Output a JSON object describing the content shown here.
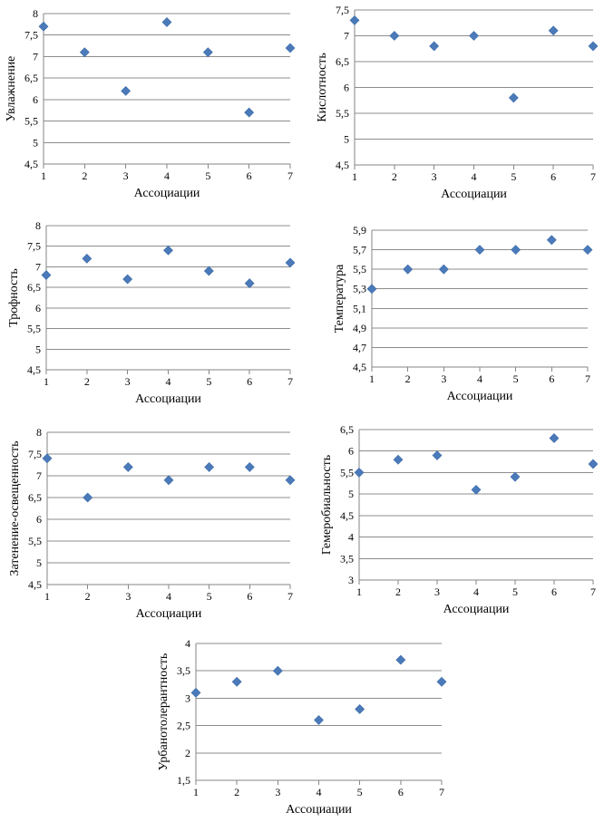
{
  "chart_data": [
    {
      "type": "scatter",
      "xlabel": "Ассоциации",
      "ylabel": "Увлажнение",
      "x": [
        1,
        2,
        3,
        4,
        5,
        6,
        7
      ],
      "y": [
        7.7,
        7.1,
        6.2,
        7.8,
        7.1,
        5.7,
        7.2
      ],
      "ylim": [
        4.5,
        8
      ],
      "yticks": [
        "4,5",
        "5",
        "5,5",
        "6",
        "6,5",
        "7",
        "7,5",
        "8"
      ],
      "xticks": [
        "1",
        "2",
        "3",
        "4",
        "5",
        "6",
        "7"
      ],
      "grid": "horizontal",
      "marker_color": "#4a7ab9"
    },
    {
      "type": "scatter",
      "xlabel": "Ассоциации",
      "ylabel": "Кислотность",
      "x": [
        1,
        2,
        3,
        4,
        5,
        6,
        7
      ],
      "y": [
        7.3,
        7.0,
        6.8,
        7.0,
        5.8,
        7.1,
        6.8
      ],
      "ylim": [
        4.5,
        7.5
      ],
      "yticks": [
        "4,5",
        "5",
        "5,5",
        "6",
        "6,5",
        "7",
        "7,5"
      ],
      "xticks": [
        "1",
        "2",
        "3",
        "4",
        "5",
        "6",
        "7"
      ],
      "grid": "horizontal",
      "marker_color": "#4a7ab9"
    },
    {
      "type": "scatter",
      "xlabel": "Ассоциации",
      "ylabel": "Трофность",
      "x": [
        1,
        2,
        3,
        4,
        5,
        6,
        7
      ],
      "y": [
        6.8,
        7.2,
        6.7,
        7.4,
        6.9,
        6.6,
        7.1
      ],
      "ylim": [
        4.5,
        8
      ],
      "yticks": [
        "4,5",
        "5",
        "5,5",
        "6",
        "6,5",
        "7",
        "7,5",
        "8"
      ],
      "xticks": [
        "1",
        "2",
        "3",
        "4",
        "5",
        "6",
        "7"
      ],
      "grid": "horizontal",
      "marker_color": "#4a7ab9"
    },
    {
      "type": "scatter",
      "xlabel": "Ассоциации",
      "ylabel": "Температура",
      "x": [
        1,
        2,
        3,
        4,
        5,
        6,
        7
      ],
      "y": [
        5.3,
        5.5,
        5.5,
        5.7,
        5.7,
        5.8,
        5.7
      ],
      "ylim": [
        4.5,
        5.9
      ],
      "yticks": [
        "4,5",
        "4,7",
        "4,9",
        "5,1",
        "5,3",
        "5,5",
        "5,7",
        "5,9"
      ],
      "xticks": [
        "1",
        "2",
        "3",
        "4",
        "5",
        "6",
        "7"
      ],
      "grid": "horizontal",
      "marker_color": "#4a7ab9"
    },
    {
      "type": "scatter",
      "xlabel": "Ассоциации",
      "ylabel": "Затенение-освещенность",
      "x": [
        1,
        2,
        3,
        4,
        5,
        6,
        7
      ],
      "y": [
        7.4,
        6.5,
        7.2,
        6.9,
        7.2,
        7.2,
        6.9
      ],
      "ylim": [
        4.5,
        8
      ],
      "yticks": [
        "4,5",
        "5",
        "5,5",
        "6",
        "6,5",
        "7",
        "7,5",
        "8"
      ],
      "xticks": [
        "1",
        "2",
        "3",
        "4",
        "5",
        "6",
        "7"
      ],
      "grid": "horizontal",
      "marker_color": "#4a7ab9"
    },
    {
      "type": "scatter",
      "xlabel": "Ассоциации",
      "ylabel": "Гемеробиальность",
      "x": [
        1,
        2,
        3,
        4,
        5,
        6,
        7
      ],
      "y": [
        5.5,
        5.8,
        5.9,
        5.1,
        5.4,
        6.3,
        5.7
      ],
      "ylim": [
        3,
        6.5
      ],
      "yticks": [
        "3",
        "3,5",
        "4",
        "4,5",
        "5",
        "5,5",
        "6",
        "6,5"
      ],
      "xticks": [
        "1",
        "2",
        "3",
        "4",
        "5",
        "6",
        "7"
      ],
      "grid": "horizontal",
      "marker_color": "#4a7ab9"
    },
    {
      "type": "scatter",
      "xlabel": "Ассоциации",
      "ylabel": "Урбанотолерантность",
      "x": [
        1,
        2,
        3,
        4,
        5,
        6,
        7
      ],
      "y": [
        3.1,
        3.3,
        3.5,
        2.6,
        2.8,
        3.7,
        3.3
      ],
      "ylim": [
        1.5,
        4
      ],
      "yticks": [
        "1,5",
        "2",
        "2,5",
        "3",
        "3,5",
        "4"
      ],
      "xticks": [
        "1",
        "2",
        "3",
        "4",
        "5",
        "6",
        "7"
      ],
      "grid": "horizontal",
      "marker_color": "#4a7ab9"
    }
  ]
}
